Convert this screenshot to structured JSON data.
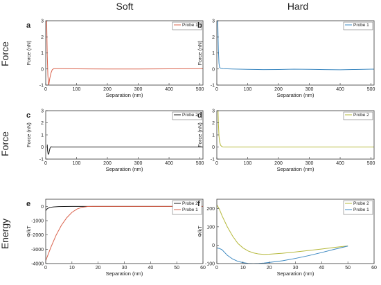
{
  "columns": [
    "Soft",
    "Hard"
  ],
  "row_labels": [
    "Force",
    "Force",
    "Energy"
  ],
  "chart_data": [
    {
      "id": "a",
      "letter": "a",
      "type": "line",
      "xlabel": "Separation (nm)",
      "ylabel": "Force (nN)",
      "xlim": [
        0,
        510
      ],
      "ylim": [
        -1,
        3
      ],
      "xticks": [
        0,
        100,
        200,
        300,
        400,
        500
      ],
      "yticks": [
        -1,
        0,
        1,
        2,
        3
      ],
      "legend": "top-right",
      "series": [
        {
          "name": "Probe 1",
          "color": "#d9604a",
          "x": [
            3,
            5,
            7,
            9,
            10,
            13,
            17,
            21,
            26,
            50,
            100,
            200,
            300,
            400,
            500,
            510
          ],
          "y": [
            3,
            0.8,
            -0.4,
            -0.95,
            -1,
            -0.6,
            -0.25,
            -0.05,
            0.02,
            0.02,
            0.01,
            0,
            0,
            0.01,
            0.02,
            0.02
          ]
        }
      ]
    },
    {
      "id": "b",
      "letter": "b",
      "type": "line",
      "xlabel": "Separation (nm)",
      "ylabel": "Force (nN)",
      "xlim": [
        0,
        510
      ],
      "ylim": [
        -1,
        3
      ],
      "xticks": [
        0,
        100,
        200,
        300,
        400,
        500
      ],
      "yticks": [
        -1,
        0,
        1,
        2,
        3
      ],
      "legend": "top-right",
      "series": [
        {
          "name": "Probe 1",
          "color": "#3a87c0",
          "x": [
            3,
            5,
            7,
            9,
            12,
            20,
            50,
            100,
            150,
            200,
            250,
            300,
            350,
            400,
            450,
            500,
            510
          ],
          "y": [
            3,
            1.2,
            0.35,
            0.1,
            0.05,
            0.02,
            0.0,
            -0.02,
            -0.04,
            -0.03,
            -0.01,
            -0.02,
            -0.04,
            -0.05,
            -0.03,
            -0.01,
            -0.01
          ]
        }
      ]
    },
    {
      "id": "c",
      "letter": "c",
      "type": "line",
      "xlabel": "Separation (nm)",
      "ylabel": "Force (nN)",
      "xlim": [
        0,
        510
      ],
      "ylim": [
        -1,
        3
      ],
      "xticks": [
        0,
        100,
        200,
        300,
        400,
        500
      ],
      "yticks": [
        -1,
        0,
        1,
        2,
        3
      ],
      "legend": "top-right",
      "series": [
        {
          "name": "Probe 2",
          "color": "#1a1a1a",
          "x": [
            5,
            6,
            8,
            10,
            12,
            14,
            17,
            22,
            50,
            100,
            200,
            300,
            400,
            500,
            510
          ],
          "y": [
            0.2,
            -0.3,
            -0.6,
            -0.55,
            -0.3,
            -0.1,
            0.02,
            0.0,
            0,
            0,
            0,
            0,
            0,
            0,
            0
          ]
        }
      ]
    },
    {
      "id": "d",
      "letter": "d",
      "type": "line",
      "xlabel": "Separation (nm)",
      "ylabel": "Force (nN)",
      "xlim": [
        0,
        510
      ],
      "ylim": [
        -1,
        3
      ],
      "xticks": [
        0,
        100,
        200,
        300,
        400,
        500
      ],
      "yticks": [
        -1,
        0,
        1,
        2,
        3
      ],
      "legend": "top-right",
      "series": [
        {
          "name": "Probe 2",
          "color": "#b5b83a",
          "x": [
            4,
            5,
            7,
            9,
            12,
            16,
            20,
            30,
            50,
            100,
            200,
            300,
            400,
            500,
            510
          ],
          "y": [
            3,
            2.0,
            0.9,
            0.45,
            0.15,
            0.04,
            0.01,
            0,
            0,
            0,
            0,
            0,
            0,
            0,
            0
          ]
        }
      ]
    },
    {
      "id": "e",
      "letter": "e",
      "type": "line",
      "xlabel": "Separation (nm)",
      "ylabel": "Φ/kT",
      "xlim": [
        0,
        60
      ],
      "ylim": [
        -4000,
        500
      ],
      "xticks": [
        0,
        10,
        20,
        30,
        40,
        50,
        60
      ],
      "yticks": [
        -4000,
        -3000,
        -2000,
        -1000,
        0
      ],
      "legend": "top-right",
      "series": [
        {
          "name": "Probe 2",
          "color": "#1a1a1a",
          "x": [
            0,
            0.5,
            1,
            1.5,
            2,
            3,
            4,
            5,
            7,
            10,
            20,
            30,
            40,
            50
          ],
          "y": [
            -300,
            -180,
            -120,
            -80,
            -60,
            -40,
            -25,
            -15,
            -5,
            0,
            0,
            0,
            0,
            0
          ]
        },
        {
          "name": "Probe 1",
          "color": "#d9604a",
          "x": [
            0,
            2,
            4,
            6,
            8,
            10,
            12,
            14,
            16,
            18,
            20,
            30,
            40,
            50,
            60
          ],
          "y": [
            -3800,
            -2850,
            -2000,
            -1320,
            -800,
            -420,
            -180,
            -60,
            -10,
            0,
            0,
            0,
            0,
            0,
            0
          ]
        }
      ]
    },
    {
      "id": "f",
      "letter": "f",
      "type": "line",
      "xlabel": "Separation (nm)",
      "ylabel": "Φ/kT",
      "xlim": [
        0,
        60
      ],
      "ylim": [
        -100,
        250
      ],
      "xticks": [
        0,
        10,
        20,
        30,
        40,
        50,
        60
      ],
      "yticks": [
        -100,
        0,
        100,
        200
      ],
      "legend": "top-right",
      "series": [
        {
          "name": "Probe 2",
          "color": "#b5b83a",
          "x": [
            0,
            1,
            2,
            4,
            6,
            8,
            10,
            12,
            14,
            16,
            18,
            20,
            25,
            30,
            35,
            40,
            45,
            50
          ],
          "y": [
            220,
            195,
            160,
            100,
            50,
            10,
            -15,
            -32,
            -42,
            -48,
            -50,
            -49,
            -44,
            -37,
            -29,
            -21,
            -12,
            -4
          ]
        },
        {
          "name": "Probe 1",
          "color": "#3a87c0",
          "x": [
            0,
            1,
            2,
            3,
            4,
            6,
            8,
            10,
            12,
            14,
            16,
            18,
            20,
            25,
            30,
            35,
            40,
            45,
            50
          ],
          "y": [
            -15,
            -18,
            -25,
            -40,
            -55,
            -75,
            -88,
            -95,
            -99,
            -100,
            -99,
            -97,
            -94,
            -85,
            -72,
            -57,
            -40,
            -22,
            -5
          ]
        }
      ]
    }
  ]
}
